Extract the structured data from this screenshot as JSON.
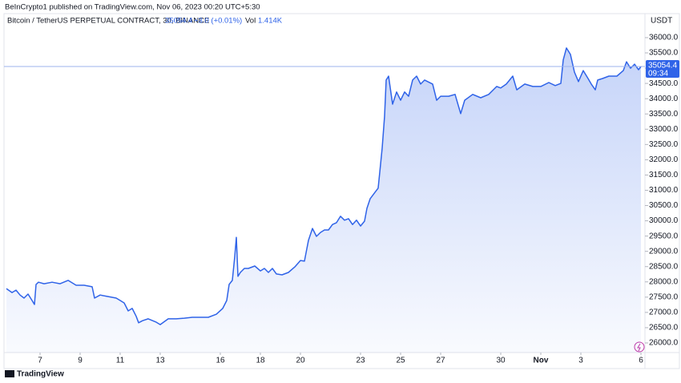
{
  "header": {
    "published": "BeInCrypto1 published on TradingView.com, Nov 06, 2023 00:20 UTC+5:30"
  },
  "footer": {
    "brand": "TradingView"
  },
  "chart_data": {
    "type": "area",
    "symbol": "Bitcoin / TetherUS PERPETUAL CONTRACT, 30, BINANCE",
    "last_price": 35054.4,
    "change": "+3.0 (+0.01%)",
    "volume_label": "Vol",
    "volume": "1.414K",
    "countdown": "09:34",
    "y_unit": "USDT",
    "color": "#2f63e8",
    "x": [
      5.32,
      5.6,
      5.8,
      6.0,
      6.2,
      6.4,
      6.6,
      6.72,
      6.8,
      6.92,
      7.2,
      7.6,
      8.0,
      8.4,
      8.8,
      9.2,
      9.6,
      9.72,
      10.0,
      10.4,
      10.8,
      11.0,
      11.2,
      11.4,
      11.6,
      11.8,
      11.92,
      12.12,
      12.4,
      12.8,
      13.0,
      13.4,
      13.8,
      14.2,
      14.6,
      15.0,
      15.4,
      15.8,
      16.12,
      16.32,
      16.44,
      16.6,
      16.72,
      16.8,
      16.88,
      17.0,
      17.2,
      17.4,
      17.72,
      18.0,
      18.2,
      18.4,
      18.6,
      18.8,
      19.08,
      19.4,
      19.72,
      20.0,
      20.2,
      20.4,
      20.6,
      20.8,
      21.0,
      21.2,
      21.4,
      21.6,
      21.8,
      22.0,
      22.2,
      22.4,
      22.6,
      22.8,
      23.0,
      23.2,
      23.32,
      23.48,
      23.72,
      23.88,
      23.96,
      24.08,
      24.2,
      24.28,
      24.4,
      24.6,
      24.8,
      25.0,
      25.2,
      25.4,
      25.6,
      25.8,
      26.0,
      26.2,
      26.6,
      26.8,
      27.0,
      27.4,
      27.72,
      28.0,
      28.2,
      28.6,
      29.0,
      29.4,
      29.8,
      30.0,
      30.28,
      30.6,
      30.8,
      31.2,
      31.6,
      32.0,
      32.4,
      32.72,
      33.0,
      33.12,
      33.28,
      33.48,
      33.68,
      33.88,
      34.12,
      34.36,
      34.52,
      34.72,
      34.84,
      35.08,
      35.4,
      35.8,
      36.12,
      36.28,
      36.48,
      36.68,
      36.88,
      37.0
    ],
    "values": [
      27780,
      27650,
      27730,
      27570,
      27470,
      27600,
      27390,
      27260,
      27915,
      27990,
      27940,
      27990,
      27940,
      28050,
      27890,
      27890,
      27840,
      27470,
      27570,
      27520,
      27470,
      27390,
      27310,
      27050,
      27130,
      26870,
      26660,
      26730,
      26790,
      26680,
      26600,
      26790,
      26790,
      26810,
      26840,
      26840,
      26840,
      26940,
      27130,
      27390,
      27915,
      28050,
      28830,
      29460,
      28180,
      28310,
      28440,
      28440,
      28520,
      28360,
      28440,
      28310,
      28440,
      28260,
      28230,
      28310,
      28490,
      28700,
      28680,
      29360,
      29750,
      29490,
      29620,
      29700,
      29700,
      29880,
      29940,
      30150,
      30020,
      30070,
      29880,
      30020,
      29830,
      29990,
      30410,
      30720,
      30930,
      31070,
      31590,
      32380,
      33430,
      34610,
      34740,
      33820,
      34220,
      33950,
      34220,
      34080,
      34610,
      34740,
      34480,
      34610,
      34480,
      33950,
      34080,
      34080,
      34140,
      33510,
      33950,
      34140,
      34030,
      34140,
      34400,
      34350,
      34480,
      34740,
      34290,
      34480,
      34400,
      34400,
      34530,
      34430,
      34500,
      35270,
      35660,
      35450,
      34870,
      34560,
      34920,
      34660,
      34480,
      34290,
      34610,
      34660,
      34740,
      34740,
      34920,
      35210,
      35000,
      35130,
      34950,
      35054.4
    ],
    "xlim": [
      5.2,
      37.2
    ],
    "xticks": [
      7,
      9,
      11,
      13,
      16,
      18,
      20,
      23,
      25,
      27,
      30,
      {
        "value": 32,
        "label": "Nov"
      },
      {
        "value": 34,
        "label": "3"
      },
      {
        "value": 37,
        "label": "6"
      }
    ],
    "ylim": [
      25685,
      36760
    ],
    "yticks": [
      {
        "value": 26000,
        "label": "26000.0"
      },
      {
        "value": 26500,
        "label": "26500.0"
      },
      {
        "value": 27000,
        "label": "27000.0"
      },
      {
        "value": 27500,
        "label": "27500.0"
      },
      {
        "value": 28000,
        "label": "28000.0"
      },
      {
        "value": 28500,
        "label": "28500.0"
      },
      {
        "value": 29000,
        "label": "29000.0"
      },
      {
        "value": 29500,
        "label": "29500.0"
      },
      {
        "value": 30000,
        "label": "30000.0"
      },
      {
        "value": 30500,
        "label": "30500.0"
      },
      {
        "value": 31000,
        "label": "31000.0"
      },
      {
        "value": 31500,
        "label": "31500.0"
      },
      {
        "value": 32000,
        "label": "32000.0"
      },
      {
        "value": 32500,
        "label": "32500.0"
      },
      {
        "value": 33000,
        "label": "33000.0"
      },
      {
        "value": 33500,
        "label": "33500.0"
      },
      {
        "value": 34000,
        "label": "34000.0"
      },
      {
        "value": 34500,
        "label": "34500.0"
      },
      {
        "value": 35000,
        "label": "35000.0"
      },
      {
        "value": 35500,
        "label": "35500.0"
      },
      {
        "value": 36000,
        "label": "36000.0"
      }
    ],
    "grid": false
  }
}
